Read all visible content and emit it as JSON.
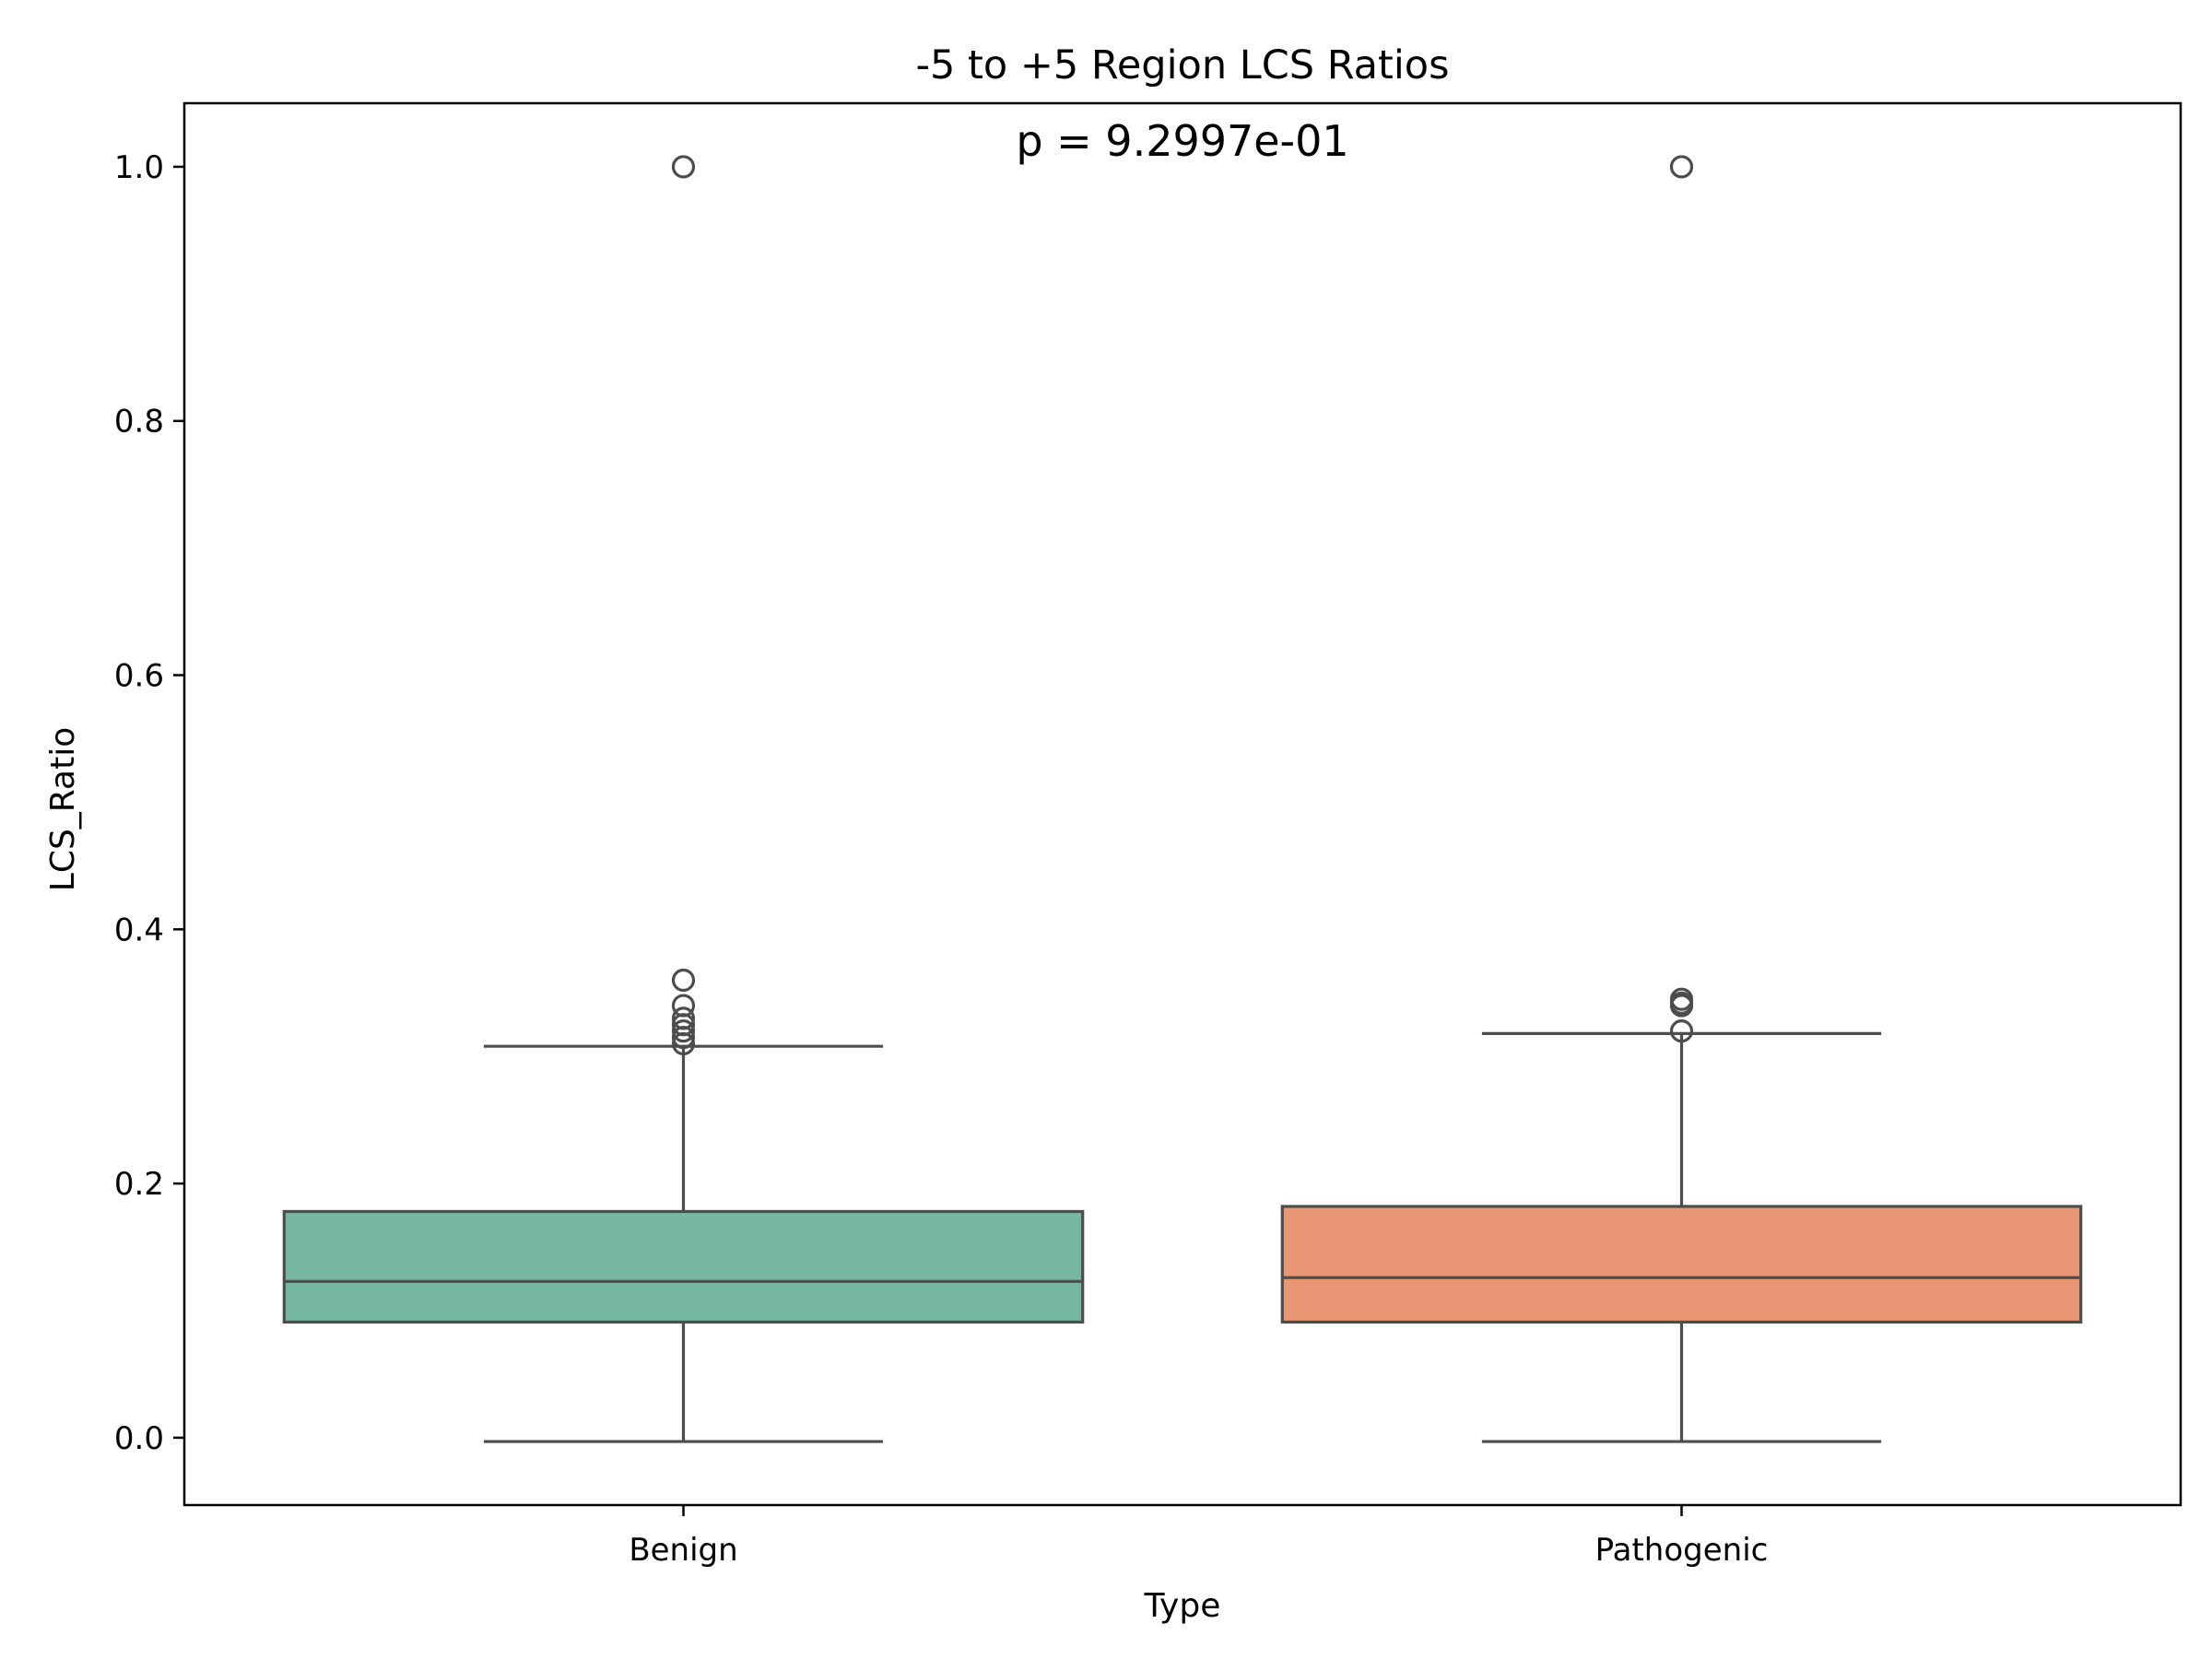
{
  "chart_data": {
    "type": "box",
    "title": "-5 to +5 Region LCS Ratios",
    "annotation": "p = 9.2997e-01",
    "xlabel": "Type",
    "ylabel": "LCS_Ratio",
    "ylim": [
      -0.053,
      1.05
    ],
    "yticks": [
      0.0,
      0.2,
      0.4,
      0.6,
      0.8,
      1.0
    ],
    "ytick_labels": [
      "0.0",
      "0.2",
      "0.4",
      "0.6",
      "0.8",
      "1.0"
    ],
    "grid": false,
    "legend": "none",
    "categories": [
      "Benign",
      "Pathogenic"
    ],
    "boxes": [
      {
        "category": "Benign",
        "color": "#76b7a2",
        "whisker_low": -0.003,
        "q1": 0.091,
        "median": 0.123,
        "q3": 0.178,
        "whisker_high": 0.308,
        "outliers": [
          0.31,
          0.315,
          0.32,
          0.325,
          0.33,
          0.34,
          0.36,
          1.0
        ]
      },
      {
        "category": "Pathogenic",
        "color": "#e99674",
        "whisker_low": -0.003,
        "q1": 0.091,
        "median": 0.126,
        "q3": 0.182,
        "whisker_high": 0.318,
        "outliers": [
          0.32,
          0.34,
          0.342,
          0.345,
          1.0
        ]
      }
    ]
  }
}
